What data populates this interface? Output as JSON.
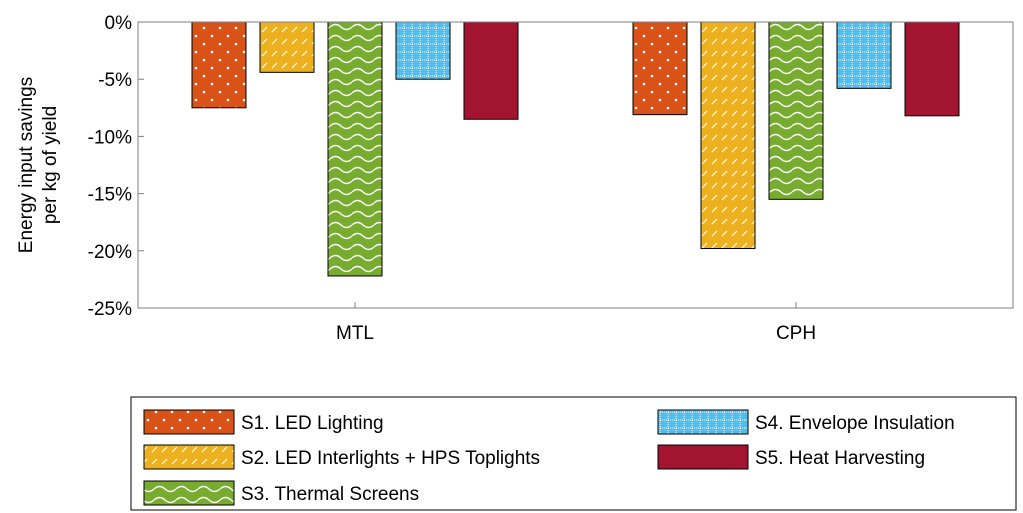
{
  "chart_data": {
    "type": "bar",
    "categories": [
      "MTL",
      "CPH"
    ],
    "ylabel": [
      "Energy input savings",
      "per kg of yield"
    ],
    "ylim": [
      -25,
      0
    ],
    "yticks": [
      0,
      -5,
      -10,
      -15,
      -20,
      -25
    ],
    "ytick_labels": [
      "0%",
      "-5%",
      "-10%",
      "-15%",
      "-20%",
      "-25%"
    ],
    "grid": false,
    "legend_position": "bottom",
    "series": [
      {
        "name": "S1. LED Lighting",
        "values": [
          -7.5,
          -8.1
        ],
        "color": "#d95319",
        "pattern": "dots"
      },
      {
        "name": "S2. LED Interlights + HPS Toplights",
        "values": [
          -4.4,
          -19.8
        ],
        "color": "#edb120",
        "pattern": "diagonal-dashes"
      },
      {
        "name": "S3. Thermal Screens",
        "values": [
          -22.2,
          -15.5
        ],
        "color": "#77ac30",
        "pattern": "waves"
      },
      {
        "name": "S4. Envelope Insulation",
        "values": [
          -5.0,
          -5.8
        ],
        "color": "#4dbeee",
        "pattern": "grid-dots"
      },
      {
        "name": "S5. Heat Harvesting",
        "values": [
          -8.5,
          -8.2
        ],
        "color": "#a2142f",
        "pattern": "none"
      }
    ]
  }
}
